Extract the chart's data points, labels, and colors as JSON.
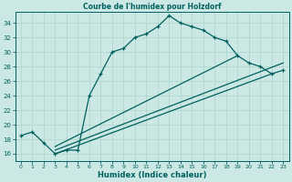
{
  "title": "Courbe de l'humidex pour Holzdorf",
  "xlabel": "Humidex (Indice chaleur)",
  "bg_color": "#cce8e4",
  "grid_color": "#aad4ce",
  "line_color": "#006060",
  "xlim": [
    -0.5,
    23.5
  ],
  "ylim": [
    15.0,
    35.5
  ],
  "yticks": [
    16,
    18,
    20,
    22,
    24,
    26,
    28,
    30,
    32,
    34
  ],
  "xticks": [
    0,
    1,
    2,
    3,
    4,
    5,
    6,
    7,
    8,
    9,
    10,
    11,
    12,
    13,
    14,
    15,
    16,
    17,
    18,
    19,
    20,
    21,
    22,
    23
  ],
  "main_line_x": [
    0,
    1,
    2,
    3,
    4,
    5,
    6,
    7,
    8,
    9,
    10,
    11,
    12,
    13,
    14,
    15,
    16,
    17,
    18,
    19,
    20,
    21,
    22,
    23
  ],
  "main_line_y": [
    18.5,
    19.0,
    17.5,
    16.0,
    16.5,
    16.5,
    24.0,
    27.0,
    30.0,
    30.5,
    32.0,
    32.5,
    33.5,
    35.0,
    34.0,
    33.5,
    33.0,
    32.0,
    31.5,
    29.5,
    28.5,
    28.0,
    27.0,
    27.5
  ],
  "straight_line1_x": [
    3,
    22
  ],
  "straight_line1_y": [
    16.0,
    27.0
  ],
  "straight_line2_x": [
    3,
    23
  ],
  "straight_line2_y": [
    16.5,
    28.5
  ],
  "straight_line3_x": [
    3,
    19
  ],
  "straight_line3_y": [
    17.0,
    29.5
  ]
}
